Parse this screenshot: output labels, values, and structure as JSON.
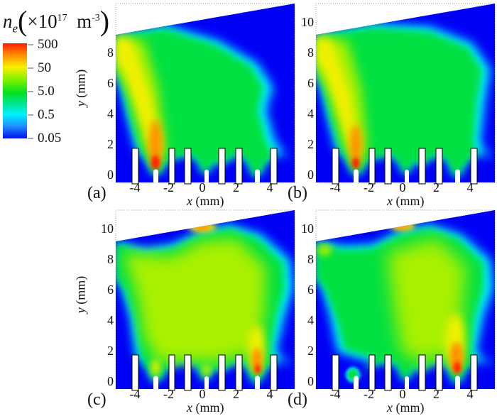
{
  "chart_data": {
    "type": "heatmap",
    "colorbar": {
      "title_symbol": "n",
      "title_subscript": "e",
      "title_prefix": "×10",
      "title_exponent": "17",
      "title_unit": "m",
      "title_unit_exponent": "-3",
      "scale": "log",
      "ticks": [
        "500",
        "50",
        "5.0",
        "0.5",
        "0.05"
      ],
      "range": [
        0.05,
        500
      ]
    },
    "xlabel_var": "x",
    "xlabel_unit": "(mm)",
    "ylabel_var": "y",
    "ylabel_unit": "(mm)",
    "xticks": [
      -4,
      -2,
      0,
      2,
      4
    ],
    "xlim": [
      -5.1,
      5.5
    ],
    "ylim": [
      -0.5,
      11.2
    ],
    "panels": [
      {
        "label": "(a)",
        "yticks": [
          0,
          2,
          4,
          6,
          8
        ]
      },
      {
        "label": "(b)",
        "yticks": [
          0,
          2,
          4,
          6,
          8,
          10
        ]
      },
      {
        "label": "(c)",
        "yticks": [
          0,
          2,
          4,
          6,
          8,
          10
        ]
      },
      {
        "label": "(d)",
        "yticks": [
          0,
          2,
          4,
          6,
          8,
          10
        ]
      }
    ],
    "colors": {
      "low": "#0000f5",
      "cyan": "#00f0ff",
      "green": "#00e040",
      "yellowgreen": "#a8f000",
      "yellow": "#f0f000",
      "orange": "#ff9000",
      "red": "#ff2000"
    }
  }
}
